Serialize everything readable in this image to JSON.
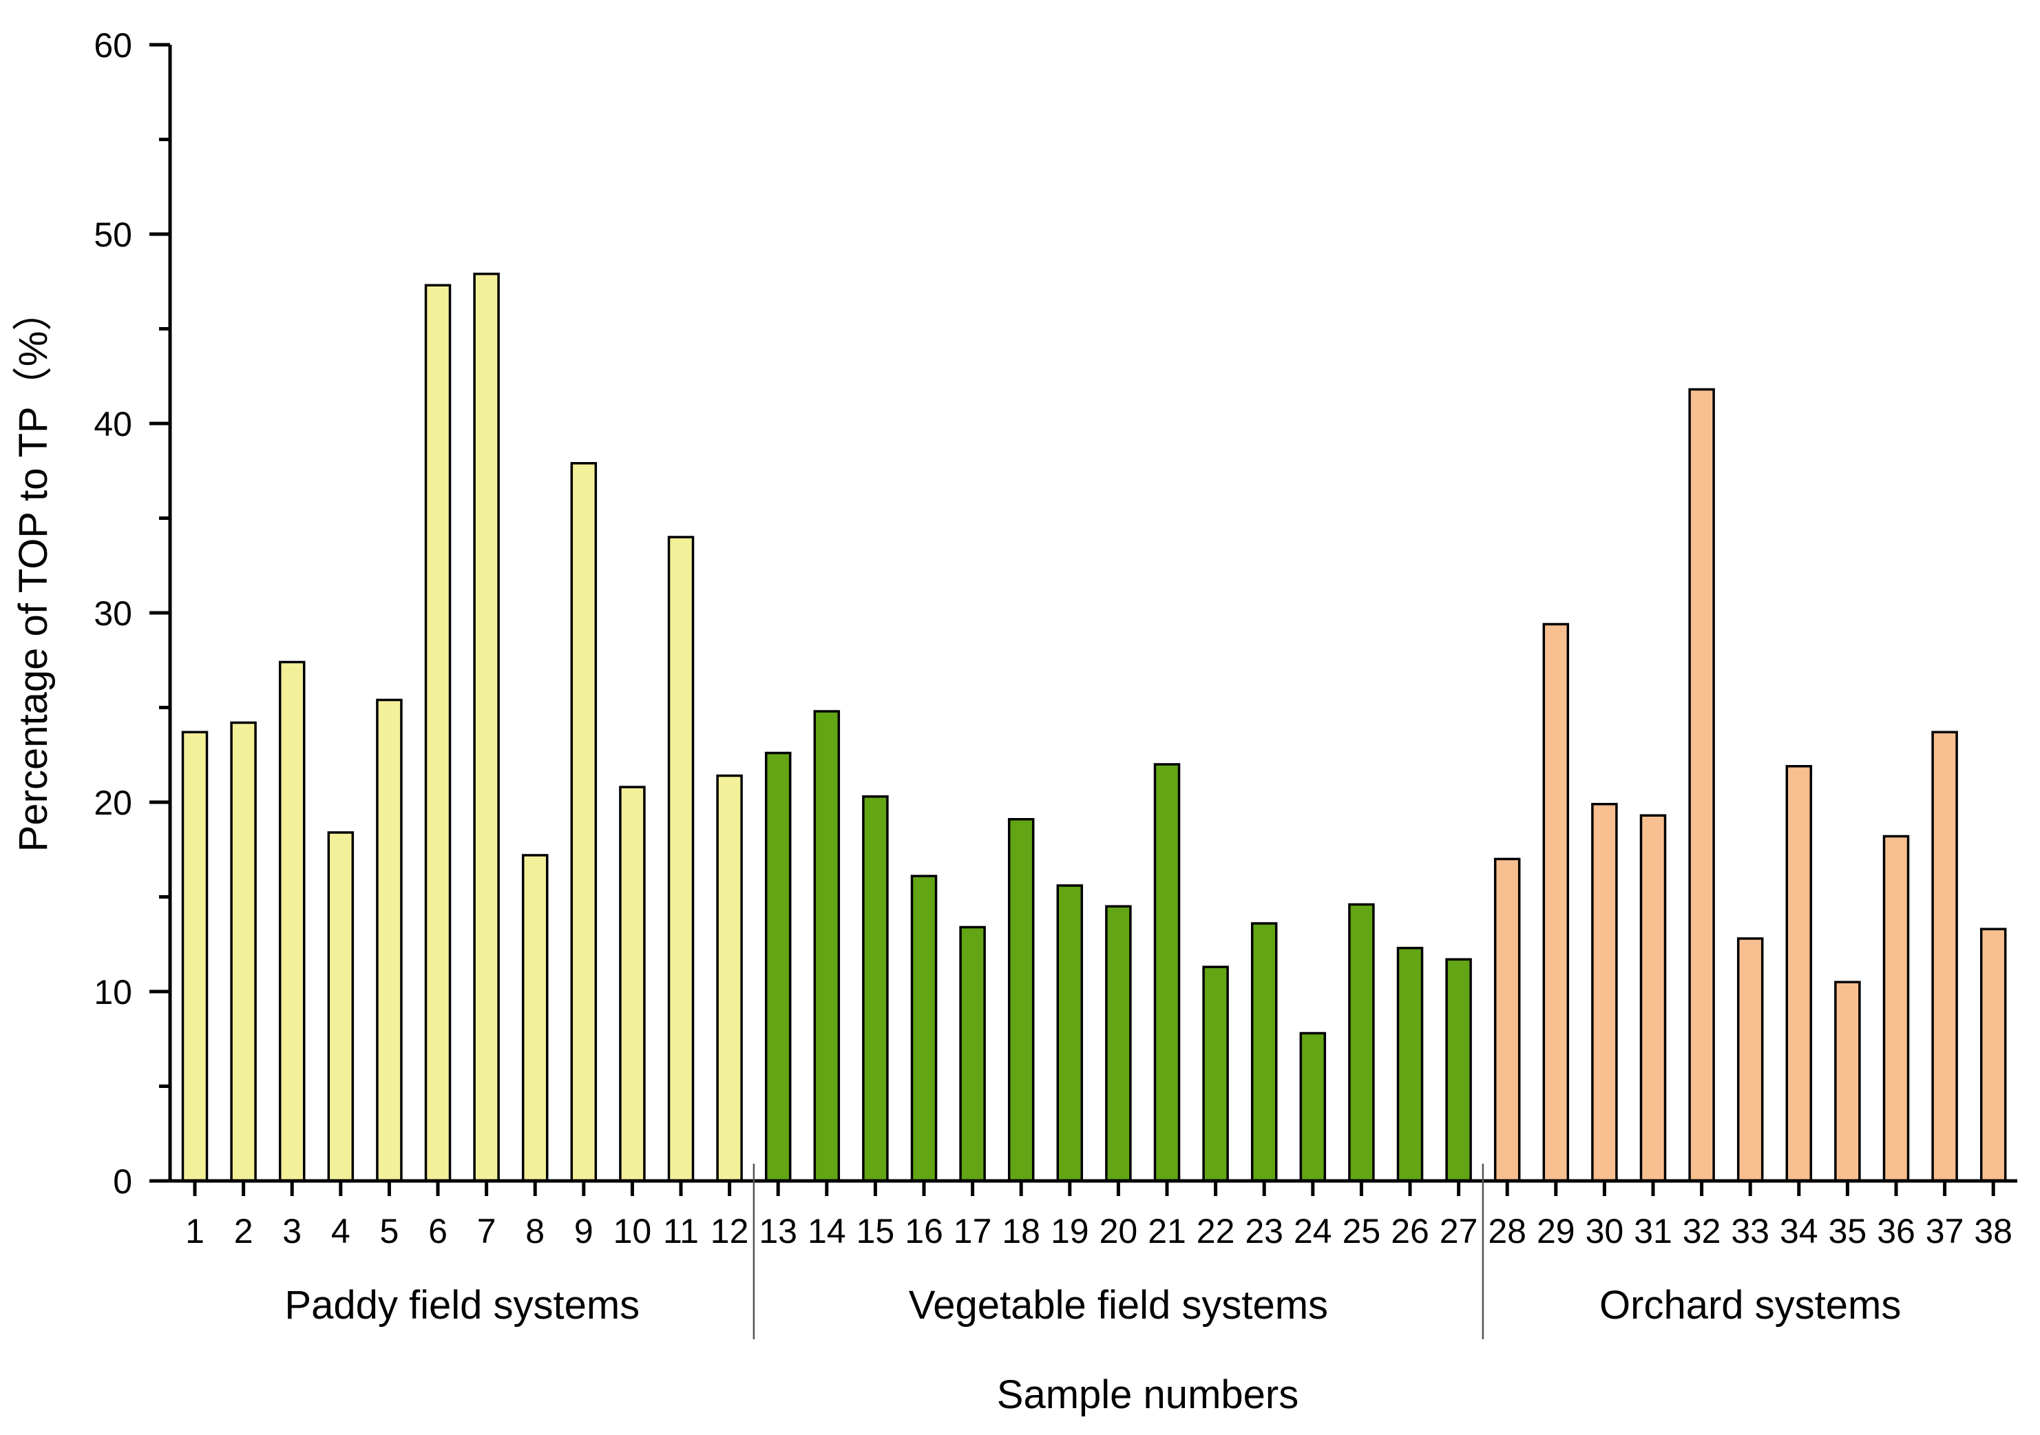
{
  "chart_data": {
    "type": "bar",
    "title": "",
    "xlabel": "Sample numbers",
    "ylabel": "Percentage of TOP to TP（%）",
    "ylim": [
      0,
      60
    ],
    "yticks": [
      0,
      10,
      20,
      30,
      40,
      50,
      60
    ],
    "categories": [
      "1",
      "2",
      "3",
      "4",
      "5",
      "6",
      "7",
      "8",
      "9",
      "10",
      "11",
      "12",
      "13",
      "14",
      "15",
      "16",
      "17",
      "18",
      "19",
      "20",
      "21",
      "22",
      "23",
      "24",
      "25",
      "26",
      "27",
      "28",
      "29",
      "30",
      "31",
      "32",
      "33",
      "34",
      "35",
      "36",
      "37",
      "38"
    ],
    "values": [
      23.7,
      24.2,
      27.4,
      18.4,
      25.4,
      47.3,
      47.9,
      17.2,
      37.9,
      20.8,
      34.0,
      21.4,
      22.6,
      24.8,
      20.3,
      16.1,
      13.4,
      19.1,
      15.6,
      14.5,
      22.0,
      11.3,
      13.6,
      7.8,
      14.6,
      12.3,
      11.7,
      17.0,
      29.4,
      19.9,
      19.3,
      41.8,
      12.8,
      21.9,
      10.5,
      18.2,
      23.7,
      13.3
    ],
    "groups": [
      {
        "name": "Paddy field systems",
        "start": 0,
        "end": 11,
        "color": "#F3F09A"
      },
      {
        "name": "Vegetable field systems",
        "start": 12,
        "end": 26,
        "color": "#63A514"
      },
      {
        "name": "Orchard systems",
        "start": 27,
        "end": 37,
        "color": "#F8BF90"
      }
    ],
    "grid": false,
    "legend": "none"
  }
}
